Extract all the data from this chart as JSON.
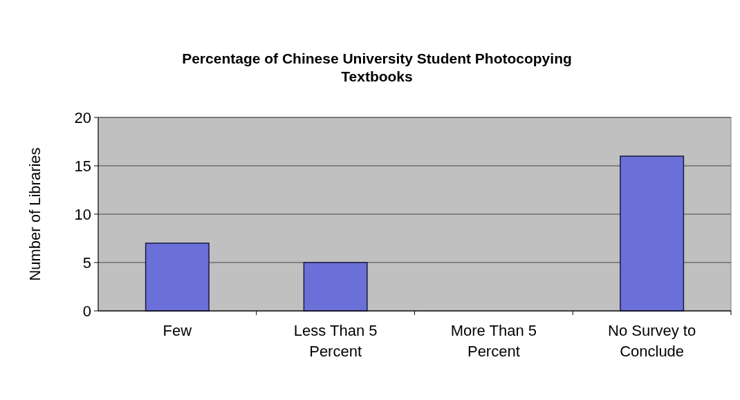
{
  "chart_data": {
    "type": "bar",
    "title": "Percentage of Chinese University Student Photocopying Textbooks",
    "ylabel": "Number of Libraries",
    "categories": [
      "Few",
      "Less Than 5 Percent",
      "More Than 5 Percent",
      "No Survey to Conclude"
    ],
    "values": [
      7,
      5,
      0,
      16
    ],
    "color": "#6b70d8",
    "ylim": [
      0,
      20
    ],
    "yticks": [
      0,
      5,
      10,
      15,
      20
    ],
    "grid": "y"
  }
}
